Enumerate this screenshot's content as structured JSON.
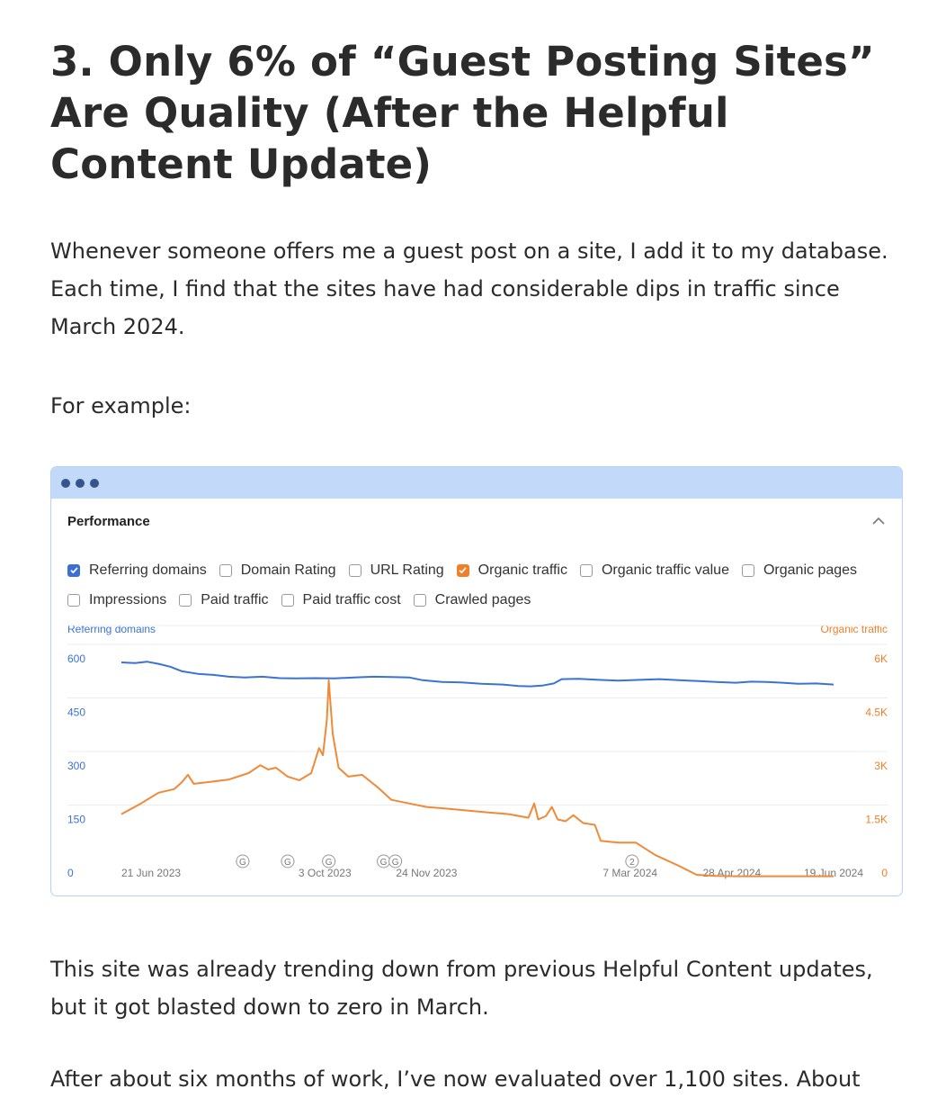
{
  "article": {
    "heading": "3. Only 6% of “Guest Posting Sites” Are Quality (After the Helpful Content Update)",
    "paragraph1": "Whenever someone offers me a guest post on a site, I add it to my database.  Each time, I find that the sites have had considerable dips in traffic since March 2024.",
    "paragraph2": "For example:",
    "paragraph3": "This site was already trending down from previous Helpful Content updates, but it got blasted down to zero in March.",
    "paragraph4": "After about six months of work, I’ve now evaluated over 1,100 sites. About"
  },
  "window": {
    "panel_title": "Performance",
    "options_row1": [
      {
        "label": "Referring domains",
        "checked": true,
        "color": "#3a6fd6"
      },
      {
        "label": "Domain Rating",
        "checked": false
      },
      {
        "label": "URL Rating",
        "checked": false
      },
      {
        "label": "Organic traffic",
        "checked": true,
        "color": "#f07f28"
      },
      {
        "label": "Organic traffic value",
        "checked": false
      },
      {
        "label": "Organic pages",
        "checked": false
      }
    ],
    "options_row2": [
      {
        "label": "Impressions",
        "checked": false
      },
      {
        "label": "Paid traffic",
        "checked": false
      },
      {
        "label": "Paid traffic cost",
        "checked": false
      },
      {
        "label": "Crawled pages",
        "checked": false
      }
    ]
  },
  "chart_data": {
    "type": "line",
    "left_axis_label": "Referring domains",
    "right_axis_label": "Organic traffic",
    "left_ticks": [
      "0",
      "150",
      "300",
      "450",
      "600"
    ],
    "right_ticks": [
      "0",
      "1.5K",
      "3K",
      "4.5K",
      "6K"
    ],
    "left_ylim": [
      0,
      600
    ],
    "right_ylim": [
      0,
      6000
    ],
    "grid": true,
    "x_range": [
      "2023-06-21",
      "2024-06-19"
    ],
    "x_tick_labels": [
      {
        "label": "21 Jun 2023",
        "date": "2023-06-21"
      },
      {
        "label": "3 Oct 2023",
        "date": "2023-10-03"
      },
      {
        "label": "24 Nov 2023",
        "date": "2023-11-24"
      },
      {
        "label": "7 Mar 2024",
        "date": "2024-03-07"
      },
      {
        "label": "28 Apr 2024",
        "date": "2024-04-28"
      },
      {
        "label": "19 Jun 2024",
        "date": "2024-06-19"
      }
    ],
    "event_markers": [
      {
        "label": "G",
        "date": "2023-08-22"
      },
      {
        "label": "G",
        "date": "2023-09-14"
      },
      {
        "label": "G",
        "date": "2023-10-05"
      },
      {
        "label": "G",
        "date": "2023-11-02"
      },
      {
        "label": "G",
        "date": "2023-11-08"
      },
      {
        "label": "2",
        "date": "2024-03-08"
      }
    ],
    "series": [
      {
        "name": "Referring domains",
        "color": "#3b72d6",
        "axis": "left",
        "points": [
          [
            "2023-06-21",
            600
          ],
          [
            "2023-06-28",
            598
          ],
          [
            "2023-07-04",
            602
          ],
          [
            "2023-07-10",
            596
          ],
          [
            "2023-07-16",
            588
          ],
          [
            "2023-07-22",
            575
          ],
          [
            "2023-07-30",
            568
          ],
          [
            "2023-08-07",
            565
          ],
          [
            "2023-08-15",
            560
          ],
          [
            "2023-08-23",
            558
          ],
          [
            "2023-09-01",
            560
          ],
          [
            "2023-09-10",
            556
          ],
          [
            "2023-09-18",
            555
          ],
          [
            "2023-09-28",
            556
          ],
          [
            "2023-10-08",
            555
          ],
          [
            "2023-10-18",
            558
          ],
          [
            "2023-10-28",
            560
          ],
          [
            "2023-11-06",
            559
          ],
          [
            "2023-11-15",
            558
          ],
          [
            "2023-11-22",
            550
          ],
          [
            "2023-12-02",
            545
          ],
          [
            "2023-12-12",
            544
          ],
          [
            "2023-12-22",
            540
          ],
          [
            "2024-01-02",
            538
          ],
          [
            "2024-01-10",
            534
          ],
          [
            "2024-01-16",
            533
          ],
          [
            "2024-01-22",
            535
          ],
          [
            "2024-01-28",
            541
          ],
          [
            "2024-02-01",
            553
          ],
          [
            "2024-02-10",
            554
          ],
          [
            "2024-02-20",
            551
          ],
          [
            "2024-03-01",
            549
          ],
          [
            "2024-03-12",
            551
          ],
          [
            "2024-03-22",
            553
          ],
          [
            "2024-04-01",
            550
          ],
          [
            "2024-04-10",
            548
          ],
          [
            "2024-04-20",
            545
          ],
          [
            "2024-04-30",
            543
          ],
          [
            "2024-05-08",
            546
          ],
          [
            "2024-05-16",
            545
          ],
          [
            "2024-05-24",
            543
          ],
          [
            "2024-06-01",
            540
          ],
          [
            "2024-06-10",
            541
          ],
          [
            "2024-06-19",
            538
          ]
        ]
      },
      {
        "name": "Organic traffic",
        "color": "#f08a38",
        "axis": "right",
        "points": [
          [
            "2023-06-21",
            1750
          ],
          [
            "2023-07-01",
            2050
          ],
          [
            "2023-07-10",
            2350
          ],
          [
            "2023-07-18",
            2450
          ],
          [
            "2023-07-22",
            2650
          ],
          [
            "2023-07-25",
            2850
          ],
          [
            "2023-07-28",
            2600
          ],
          [
            "2023-08-05",
            2650
          ],
          [
            "2023-08-15",
            2720
          ],
          [
            "2023-08-25",
            2900
          ],
          [
            "2023-08-31",
            3120
          ],
          [
            "2023-09-04",
            3000
          ],
          [
            "2023-09-08",
            3050
          ],
          [
            "2023-09-14",
            2800
          ],
          [
            "2023-09-20",
            2700
          ],
          [
            "2023-09-26",
            2900
          ],
          [
            "2023-09-30",
            3600
          ],
          [
            "2023-10-02",
            3400
          ],
          [
            "2023-10-04",
            4400
          ],
          [
            "2023-10-05",
            5500
          ],
          [
            "2023-10-07",
            4000
          ],
          [
            "2023-10-10",
            3050
          ],
          [
            "2023-10-15",
            2800
          ],
          [
            "2023-10-22",
            2850
          ],
          [
            "2023-10-30",
            2500
          ],
          [
            "2023-11-06",
            2150
          ],
          [
            "2023-11-15",
            2050
          ],
          [
            "2023-11-24",
            1950
          ],
          [
            "2023-12-05",
            1900
          ],
          [
            "2023-12-15",
            1850
          ],
          [
            "2023-12-25",
            1800
          ],
          [
            "2024-01-05",
            1750
          ],
          [
            "2024-01-15",
            1650
          ],
          [
            "2024-01-18",
            2050
          ],
          [
            "2024-01-20",
            1600
          ],
          [
            "2024-01-24",
            1700
          ],
          [
            "2024-01-27",
            1950
          ],
          [
            "2024-01-30",
            1600
          ],
          [
            "2024-02-03",
            1550
          ],
          [
            "2024-02-07",
            1720
          ],
          [
            "2024-02-12",
            1500
          ],
          [
            "2024-02-18",
            1450
          ],
          [
            "2024-02-21",
            1000
          ],
          [
            "2024-03-01",
            950
          ],
          [
            "2024-03-10",
            950
          ],
          [
            "2024-03-20",
            600
          ],
          [
            "2024-04-01",
            300
          ],
          [
            "2024-04-10",
            50
          ],
          [
            "2024-04-20",
            20
          ],
          [
            "2024-05-01",
            10
          ],
          [
            "2024-05-15",
            10
          ],
          [
            "2024-06-01",
            10
          ],
          [
            "2024-06-19",
            10
          ]
        ]
      }
    ]
  }
}
